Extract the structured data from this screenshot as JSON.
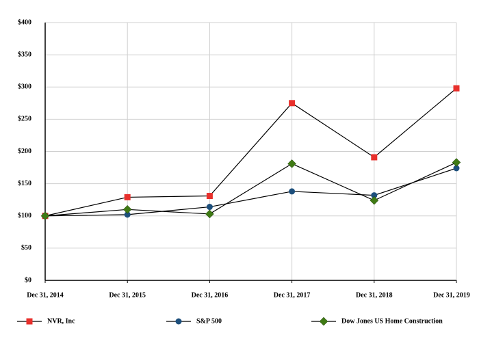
{
  "chart_data": {
    "type": "line",
    "categories": [
      "Dec 31, 2014",
      "Dec 31, 2015",
      "Dec 31, 2016",
      "Dec 31, 2017",
      "Dec 31, 2018",
      "Dec 31, 2019"
    ],
    "series": [
      {
        "name": "NVR, Inc",
        "color": "#e8302c",
        "marker": "square",
        "values": [
          100,
          129,
          131,
          275,
          191,
          298
        ]
      },
      {
        "name": "S&P 500",
        "color": "#1d4f7c",
        "marker": "circle",
        "values": [
          100,
          102,
          114,
          138,
          132,
          174
        ]
      },
      {
        "name": "Dow Jones US Home Construction",
        "color": "#3f7a14",
        "marker": "diamond",
        "values": [
          100,
          110,
          103,
          181,
          124,
          183
        ]
      }
    ],
    "ylim": [
      0,
      400
    ],
    "yticks": [
      {
        "value": 0,
        "label": "$0"
      },
      {
        "value": 50,
        "label": "$50"
      },
      {
        "value": 100,
        "label": "$100"
      },
      {
        "value": 150,
        "label": "$150"
      },
      {
        "value": 200,
        "label": "$200"
      },
      {
        "value": 250,
        "label": "$250"
      },
      {
        "value": 300,
        "label": "$300"
      },
      {
        "value": 350,
        "label": "$350"
      },
      {
        "value": 400,
        "label": "$400"
      }
    ],
    "grid": true,
    "legend": "bottom"
  }
}
